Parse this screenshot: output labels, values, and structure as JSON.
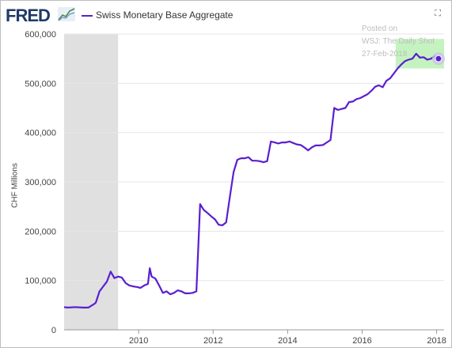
{
  "header": {
    "logo_text": "FRED",
    "logo_mark_icon": "chart-line-icon",
    "series_label": "Swiss Monetary Base Aggregate",
    "expand_icon": "expand-icon"
  },
  "watermark": {
    "line1": "Posted on",
    "line2": "WSJ: The Daily Shot",
    "line3": "27-Feb-2018"
  },
  "colors": {
    "series": "#5a1fcf",
    "recession": "#e0e0e0",
    "highlight": "#b6f0b0",
    "grid": "#e6e6e6"
  },
  "chart_data": {
    "type": "line",
    "title": "",
    "xlabel": "",
    "ylabel": "CHF Millions",
    "xlim": [
      2008.0,
      2018.2
    ],
    "ylim": [
      0,
      600000
    ],
    "x_ticks": [
      2010,
      2012,
      2014,
      2016,
      2018
    ],
    "x_tick_labels": [
      "2010",
      "2012",
      "2014",
      "2016",
      "2018"
    ],
    "y_ticks": [
      0,
      100000,
      200000,
      300000,
      400000,
      500000,
      600000
    ],
    "y_tick_labels": [
      "0",
      "100,000",
      "200,000",
      "300,000",
      "400,000",
      "500,000",
      "600,000"
    ],
    "grid": "horizontal",
    "recession_shading": [
      [
        2008.0,
        2009.45
      ]
    ],
    "highlight_region": [
      2016.9,
      2018.2,
      530000,
      590000
    ],
    "series": [
      {
        "name": "Swiss Monetary Base Aggregate",
        "x": [
          2008.0,
          2008.1,
          2008.3,
          2008.5,
          2008.65,
          2008.8,
          2008.85,
          2008.95,
          2009.05,
          2009.15,
          2009.25,
          2009.35,
          2009.45,
          2009.55,
          2009.65,
          2009.75,
          2009.85,
          2009.95,
          2010.05,
          2010.15,
          2010.25,
          2010.3,
          2010.35,
          2010.45,
          2010.55,
          2010.65,
          2010.75,
          2010.85,
          2010.95,
          2011.05,
          2011.15,
          2011.25,
          2011.35,
          2011.45,
          2011.55,
          2011.65,
          2011.75,
          2011.85,
          2011.95,
          2012.05,
          2012.15,
          2012.25,
          2012.35,
          2012.45,
          2012.55,
          2012.65,
          2012.75,
          2012.85,
          2012.95,
          2013.05,
          2013.15,
          2013.25,
          2013.35,
          2013.45,
          2013.55,
          2013.65,
          2013.75,
          2013.85,
          2013.95,
          2014.05,
          2014.15,
          2014.25,
          2014.35,
          2014.45,
          2014.55,
          2014.65,
          2014.75,
          2014.85,
          2014.95,
          2015.05,
          2015.15,
          2015.25,
          2015.35,
          2015.45,
          2015.55,
          2015.65,
          2015.75,
          2015.85,
          2015.95,
          2016.05,
          2016.15,
          2016.25,
          2016.35,
          2016.45,
          2016.55,
          2016.65,
          2016.75,
          2016.85,
          2016.95,
          2017.05,
          2017.15,
          2017.25,
          2017.35,
          2017.45,
          2017.55,
          2017.65,
          2017.75,
          2017.85,
          2017.95,
          2018.05
        ],
        "y": [
          46000,
          45000,
          46000,
          45000,
          45000,
          52000,
          55000,
          78000,
          88000,
          98000,
          118000,
          105000,
          108000,
          106000,
          95000,
          90000,
          88000,
          87000,
          85000,
          90000,
          93000,
          125000,
          108000,
          104000,
          90000,
          75000,
          78000,
          72000,
          75000,
          80000,
          78000,
          74000,
          74000,
          75000,
          78000,
          255000,
          243000,
          237000,
          230000,
          224000,
          213000,
          212000,
          218000,
          270000,
          320000,
          345000,
          348000,
          348000,
          350000,
          343000,
          343000,
          342000,
          340000,
          342000,
          382000,
          380000,
          378000,
          380000,
          380000,
          382000,
          379000,
          376000,
          375000,
          370000,
          364000,
          370000,
          374000,
          374000,
          375000,
          380000,
          385000,
          450000,
          446000,
          448000,
          450000,
          462000,
          463000,
          468000,
          470000,
          474000,
          478000,
          485000,
          493000,
          496000,
          492000,
          505000,
          510000,
          520000,
          530000,
          538000,
          545000,
          548000,
          550000,
          560000,
          552000,
          553000,
          548000,
          550000,
          555000,
          550000
        ]
      }
    ]
  }
}
